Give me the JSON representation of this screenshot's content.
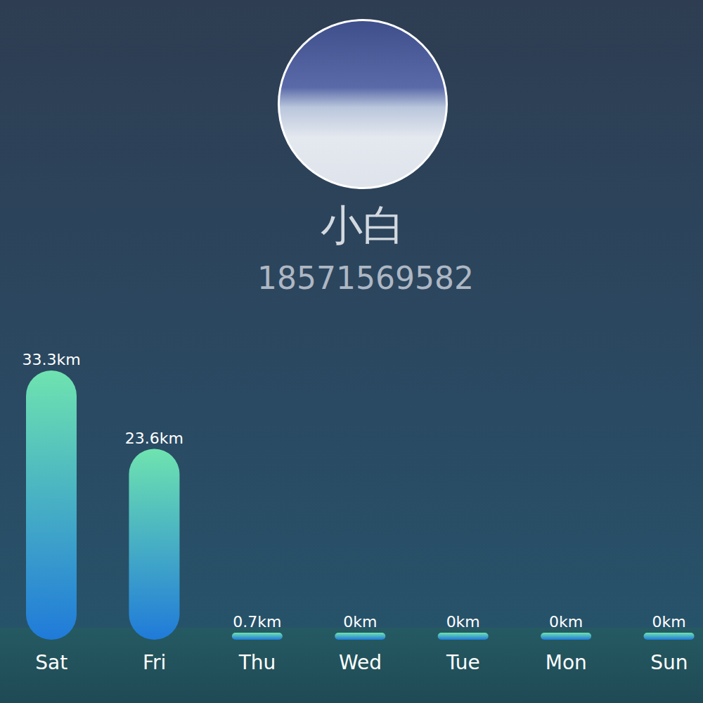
{
  "profile": {
    "name": "小白",
    "phone": "18571569582"
  },
  "chart_data": {
    "type": "bar",
    "categories": [
      "Sat",
      "Fri",
      "Thu",
      "Wed",
      "Tue",
      "Mon",
      "Sun"
    ],
    "values": [
      33.3,
      23.6,
      0.7,
      0,
      0,
      0,
      0
    ],
    "value_labels": [
      "33.3km",
      "23.6km",
      "0.7km",
      "0km",
      "0km",
      "0km",
      "0km"
    ],
    "data_labels": true,
    "tick_labels": "x",
    "ylim": [
      0,
      33.3
    ],
    "color": "#1f7ad9",
    "grid": false
  }
}
